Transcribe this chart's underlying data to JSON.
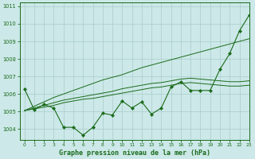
{
  "background_color": "#cce8e8",
  "grid_color": "#aacccc",
  "title": "Graphe pression niveau de la mer (hPa)",
  "xlim": [
    -0.5,
    23
  ],
  "ylim": [
    1003.4,
    1011.2
  ],
  "yticks": [
    1004,
    1005,
    1006,
    1007,
    1008,
    1009,
    1010,
    1011
  ],
  "xticks": [
    0,
    1,
    2,
    3,
    4,
    5,
    6,
    7,
    8,
    9,
    10,
    11,
    12,
    13,
    14,
    15,
    16,
    17,
    18,
    19,
    20,
    21,
    22,
    23
  ],
  "line_color": "#1a6b1a",
  "series": {
    "instant": [
      1006.3,
      1005.1,
      1005.4,
      1005.2,
      1004.1,
      1004.1,
      1003.65,
      1004.1,
      1004.9,
      1004.8,
      1005.6,
      1005.2,
      1005.55,
      1004.85,
      1005.2,
      1006.4,
      1006.7,
      1006.2,
      1006.2,
      1006.2,
      1007.4,
      1008.3,
      1009.6,
      1010.5
    ],
    "trend": [
      1005.05,
      1005.3,
      1005.55,
      1005.8,
      1006.0,
      1006.2,
      1006.4,
      1006.6,
      1006.8,
      1006.95,
      1007.1,
      1007.3,
      1007.5,
      1007.65,
      1007.8,
      1007.95,
      1008.1,
      1008.25,
      1008.4,
      1008.55,
      1008.7,
      1008.85,
      1009.0,
      1009.15
    ],
    "normal": [
      1005.05,
      1005.15,
      1005.25,
      1005.35,
      1005.5,
      1005.6,
      1005.7,
      1005.75,
      1005.85,
      1005.95,
      1006.05,
      1006.15,
      1006.25,
      1006.35,
      1006.4,
      1006.5,
      1006.6,
      1006.65,
      1006.6,
      1006.55,
      1006.5,
      1006.45,
      1006.45,
      1006.5
    ],
    "avg": [
      1005.05,
      1005.2,
      1005.35,
      1005.5,
      1005.65,
      1005.75,
      1005.85,
      1005.95,
      1006.05,
      1006.15,
      1006.3,
      1006.4,
      1006.5,
      1006.6,
      1006.65,
      1006.75,
      1006.85,
      1006.9,
      1006.85,
      1006.8,
      1006.75,
      1006.7,
      1006.7,
      1006.75
    ]
  }
}
